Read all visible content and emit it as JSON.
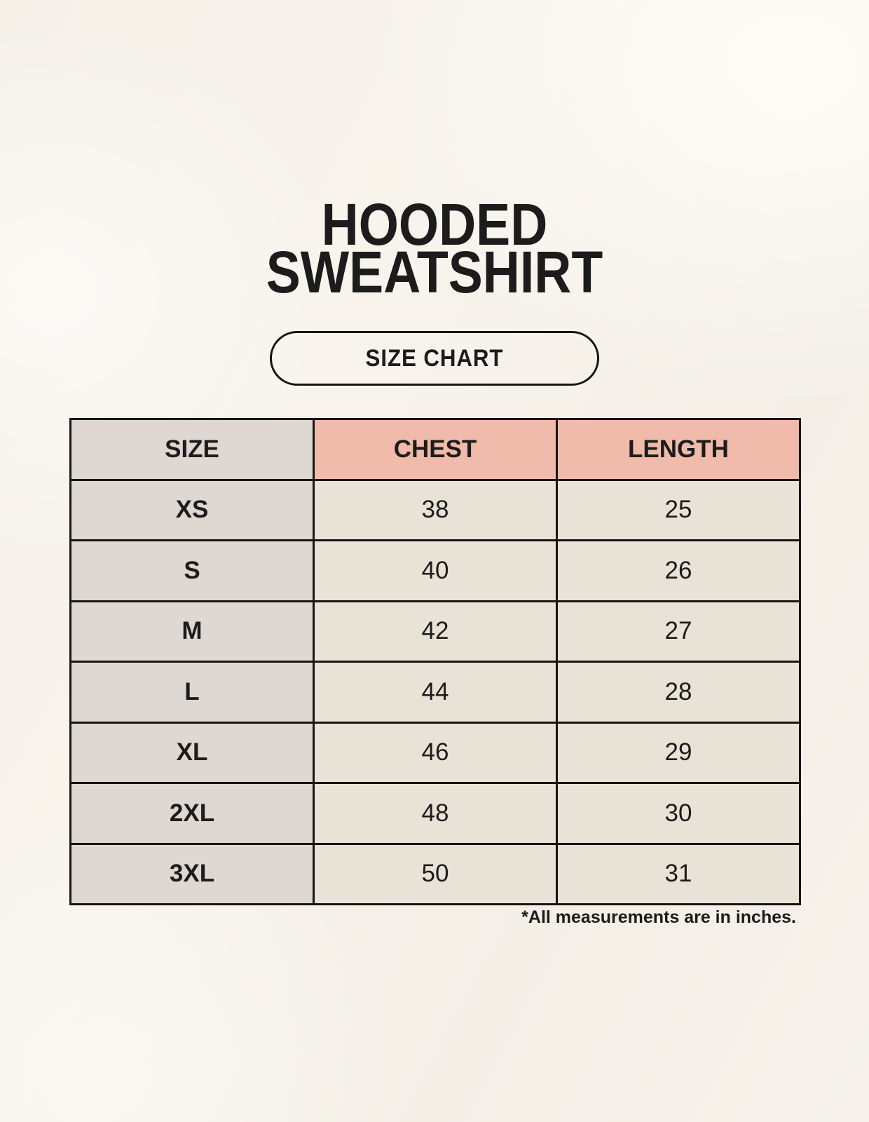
{
  "header": {
    "title_line1": "HOODED",
    "title_line2": "SWEATSHIRT",
    "badge_label": "SIZE CHART"
  },
  "footnote": "*All measurements are in inches.",
  "colors": {
    "background": "#f6f2ea",
    "size_column_bg": "#ded7d2",
    "header_accent_bg": "#f0bbaa",
    "cell_bg": "#e9e2d6",
    "border": "#161514",
    "text": "#1c1c1c"
  },
  "chart_data": {
    "type": "table",
    "title": "HOODED SWEATSHIRT",
    "subtitle": "SIZE CHART",
    "units": "inches",
    "columns": [
      "SIZE",
      "CHEST",
      "LENGTH"
    ],
    "rows": [
      [
        "XS",
        "38",
        "25"
      ],
      [
        "S",
        "40",
        "26"
      ],
      [
        "M",
        "42",
        "27"
      ],
      [
        "L",
        "44",
        "28"
      ],
      [
        "XL",
        "46",
        "29"
      ],
      [
        "2XL",
        "48",
        "30"
      ],
      [
        "3XL",
        "50",
        "31"
      ]
    ]
  }
}
